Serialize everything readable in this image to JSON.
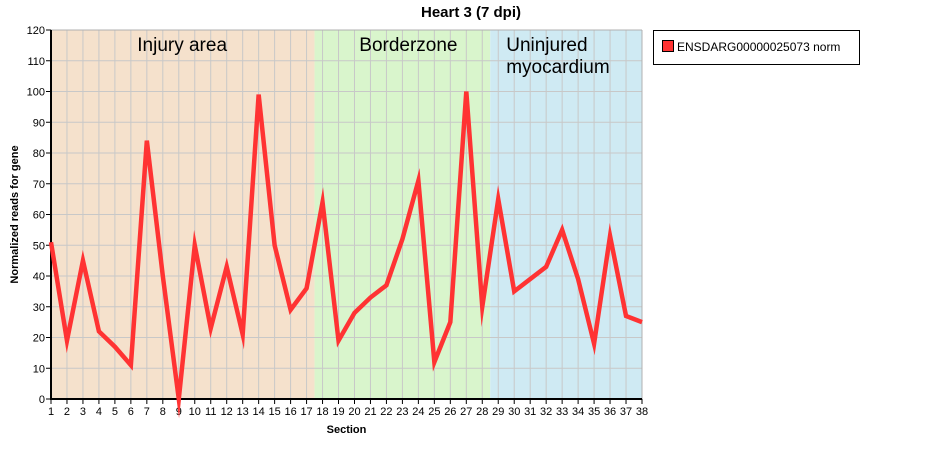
{
  "chart_data": {
    "type": "line",
    "title": "Heart 3 (7 dpi)",
    "xlabel": "Section",
    "ylabel": "Normalized reads for gene",
    "xlim": [
      1,
      38
    ],
    "ylim": [
      0,
      120
    ],
    "y_ticks": [
      0,
      10,
      20,
      30,
      40,
      50,
      60,
      70,
      80,
      90,
      100,
      110,
      120
    ],
    "x": [
      1,
      2,
      3,
      4,
      5,
      6,
      7,
      8,
      9,
      10,
      11,
      12,
      13,
      14,
      15,
      16,
      17,
      18,
      19,
      20,
      21,
      22,
      23,
      24,
      25,
      26,
      27,
      28,
      29,
      30,
      31,
      32,
      33,
      34,
      35,
      36,
      37,
      38
    ],
    "grid": true,
    "legend_position": "right",
    "series": [
      {
        "name": "ENSDARG00000025073 norm",
        "color": "#ff3333",
        "values": [
          51,
          19,
          45,
          22,
          17,
          11,
          84,
          40,
          0,
          50,
          23,
          43,
          21,
          99,
          50,
          29,
          36,
          64,
          19,
          28,
          33,
          37,
          52,
          71,
          12,
          25,
          100,
          30,
          65,
          35,
          39,
          43,
          55,
          39,
          18,
          53,
          27,
          25
        ]
      }
    ],
    "regions": [
      {
        "label": "Injury area",
        "from": 1,
        "to": 17.5,
        "color": "#f5e1cc"
      },
      {
        "label": "Borderzone",
        "from": 17.5,
        "to": 28.5,
        "color": "#d9f5cc"
      },
      {
        "label": "Uninjured myocardium",
        "label_lines": [
          "Uninjured",
          "myocardium"
        ],
        "from": 28.5,
        "to": 38,
        "color": "#cfeaf3"
      }
    ]
  }
}
